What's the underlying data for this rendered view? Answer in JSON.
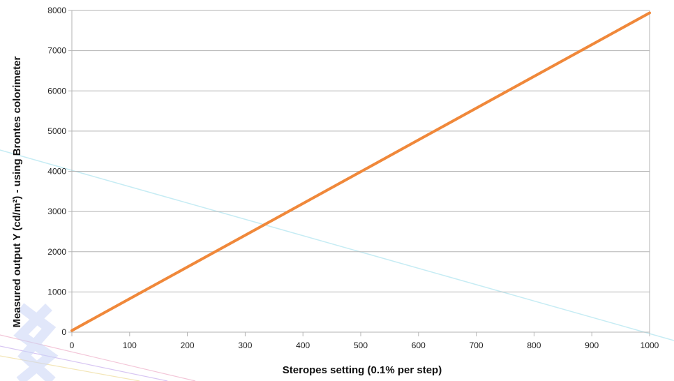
{
  "chart_data": {
    "type": "line",
    "title": "",
    "xlabel": "Steropes setting (0.1% per step)",
    "ylabel": "Measured output  Y (cd/m²) - using Brontes colorimeter",
    "xlim": [
      0,
      1000
    ],
    "ylim": [
      0,
      8000
    ],
    "x_ticks": [
      "0",
      "100",
      "200",
      "300",
      "400",
      "500",
      "600",
      "700",
      "800",
      "900",
      "1000"
    ],
    "y_ticks": [
      "0",
      "1000",
      "2000",
      "3000",
      "4000",
      "5000",
      "6000",
      "7000",
      "8000"
    ],
    "grid": "horizontal",
    "legend": "none",
    "series": [
      {
        "color": "#f0883a",
        "x": [
          0,
          100,
          200,
          300,
          400,
          500,
          600,
          700,
          800,
          900,
          1000
        ],
        "y": [
          40,
          830,
          1620,
          2410,
          3200,
          3990,
          4780,
          5570,
          6360,
          7150,
          7940
        ]
      }
    ]
  }
}
